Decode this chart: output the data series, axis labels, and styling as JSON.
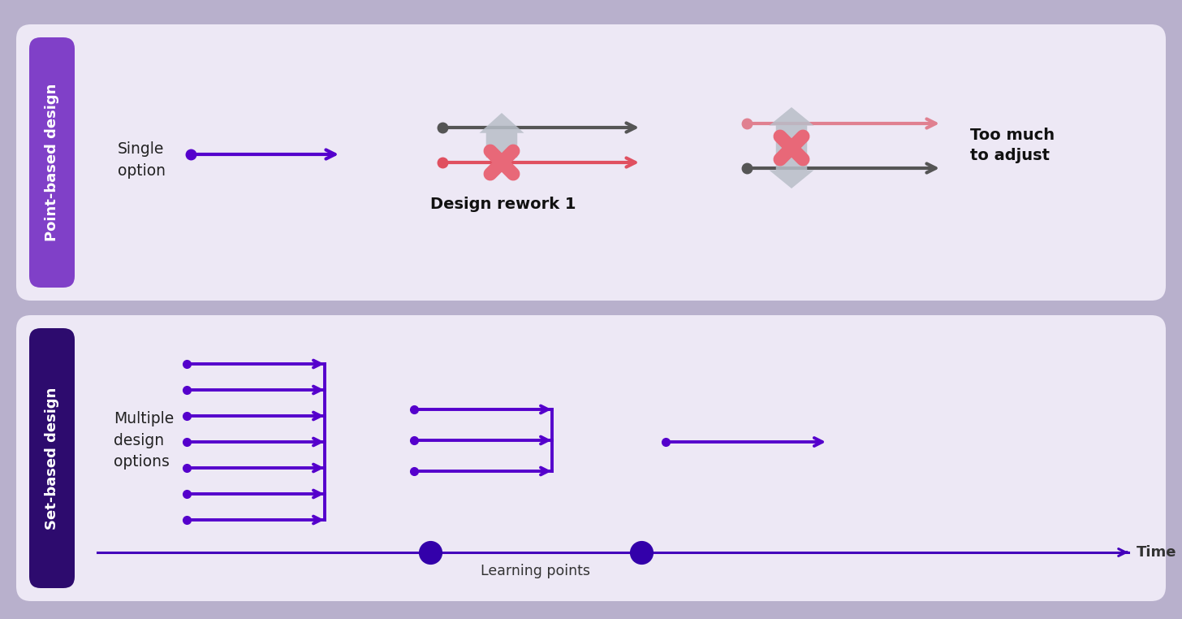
{
  "bg_outer": "#b8b0cc",
  "bg_top_panel": "#ede8f5",
  "bg_bottom_panel": "#ede8f5",
  "purple_label_top": "#8040c8",
  "purple_label_bottom": "#2d0b6e",
  "purple_arrow": "#5500cc",
  "gray_arrow": "#555555",
  "red_arrow": "#e05060",
  "pink_arrow": "#e08090",
  "cross_color": "#e86878",
  "up_down_arrow_color": "#b8bec8",
  "timeline_color": "#4400bb",
  "dot_large_color": "#3300aa",
  "dot_small_color": "#5500cc",
  "title_top": "Point-based design",
  "title_bottom": "Set-based design",
  "label_single": "Single\noption",
  "label_multiple": "Multiple\ndesign\noptions",
  "label_rework1": "Design rework 1",
  "label_toomuch": "Too much\nto adjust",
  "label_learning": "Learning points",
  "label_time": "Time"
}
